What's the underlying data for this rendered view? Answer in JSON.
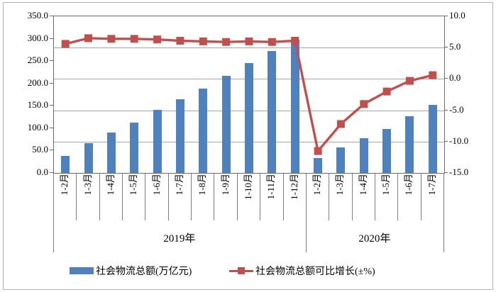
{
  "chart_data": {
    "type": "combo-bar-line-dual-axis",
    "categories": [
      "1-2月",
      "1-3月",
      "1-4月",
      "1-5月",
      "1-6月",
      "1-7月",
      "1-8月",
      "1-9月",
      "1-10月",
      "1-11月",
      "1-12月",
      "1-2月",
      "1-3月",
      "1-4月",
      "1-5月",
      "1-6月",
      "1-7月"
    ],
    "category_groups": [
      {
        "label": "2019年",
        "count": 11
      },
      {
        "label": "2020年",
        "count": 6
      }
    ],
    "series": [
      {
        "name": "社会物流总额(万亿元)",
        "type": "bar",
        "axis": "left",
        "color": "#4F81BD",
        "values": [
          38,
          66,
          90,
          113,
          141,
          165,
          189,
          217,
          246,
          273,
          298,
          33,
          57,
          77,
          98,
          126,
          152
        ]
      },
      {
        "name": "社会物流总额可比增长(±%)",
        "type": "line",
        "axis": "right",
        "marker": "square",
        "color": "#C0504D",
        "values": [
          5.6,
          6.5,
          6.4,
          6.4,
          6.3,
          6.1,
          6.0,
          5.9,
          6.0,
          5.9,
          6.1,
          -11.5,
          -7.2,
          -4.0,
          -2.0,
          -0.3,
          0.6
        ]
      }
    ],
    "left_axis": {
      "min": 0,
      "max": 350,
      "step": 50,
      "tick_labels": [
        "350.0",
        "300.0",
        "250.0",
        "200.0",
        "150.0",
        "100.0",
        "50.0",
        "0.0"
      ]
    },
    "right_axis": {
      "min": -15,
      "max": 10,
      "step": 5,
      "tick_labels": [
        "10.0",
        "5.0",
        "0.0",
        "-5.0",
        "-10.0",
        "-15.0"
      ]
    },
    "grid": true,
    "legend_position": "bottom"
  },
  "colors": {
    "bar": "#4F81BD",
    "line": "#C0504D",
    "gridline": "#a6a6a6",
    "axis": "#6b6b6b",
    "frame_border": "#b3b3b3",
    "text": "#000000"
  }
}
